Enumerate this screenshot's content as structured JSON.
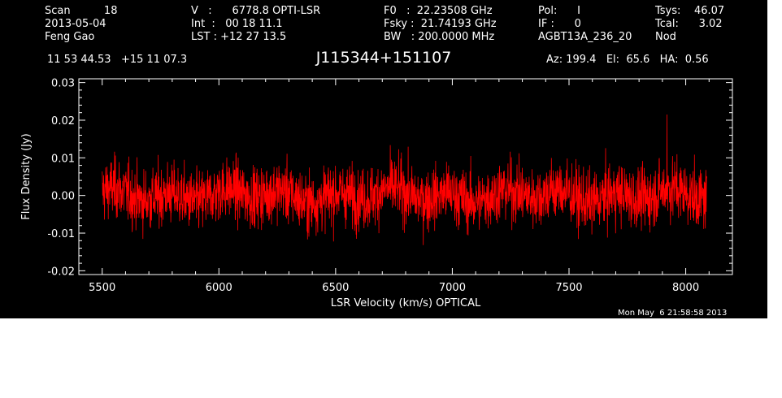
{
  "header": {
    "col1": [
      "Scan          18",
      "2013-05-04",
      "Feng Gao"
    ],
    "col2": [
      "V   :      6778.8 OPTI-LSR",
      "Int  :   00 18 11.1",
      "LST : +12 27 13.5"
    ],
    "col3": [
      "F0   :  22.23508 GHz",
      "Fsky :  21.74193 GHz",
      "BW   : 200.0000 MHz"
    ],
    "col4": [
      "Pol:      I",
      "IF :      0",
      "AGBT13A_236_20"
    ],
    "col5": [
      "Tsys:    46.07",
      "Tcal:      3.02",
      "Nod"
    ],
    "coords": "11 53 44.53   +15 11 07.3",
    "source": "J115344+151107",
    "az_el_ha": "Az: 199.4   El:  65.6   HA:  0.56"
  },
  "timestamp": "Mon May  6 21:58:58 2013",
  "colors": {
    "background": "#000000",
    "axes": "#ffffff",
    "series": "#ff0000"
  },
  "chart_data": {
    "type": "line",
    "xlabel": "LSR Velocity (km/s) OPTICAL",
    "ylabel": "Flux Density (Jy)",
    "xlim": [
      5400,
      8200
    ],
    "ylim": [
      -0.021,
      0.031
    ],
    "xticks": [
      5500,
      6000,
      6500,
      7000,
      7500,
      8000
    ],
    "xtick_labels": [
      "5500",
      "6000",
      "6500",
      "7000",
      "7500",
      "8000"
    ],
    "yticks": [
      -0.02,
      -0.01,
      0.0,
      0.01,
      0.02,
      0.03
    ],
    "ytick_labels": [
      "-0.02",
      "-0.01",
      "0.00",
      "0.01",
      "0.02",
      "0.03"
    ],
    "grid": false,
    "series": [
      {
        "x_start": 5500,
        "x_end": 8090,
        "mean": 0.0,
        "rms": 0.004,
        "peak": {
          "x": 7920,
          "y": 0.0215
        },
        "color": "#ff0000"
      }
    ]
  }
}
